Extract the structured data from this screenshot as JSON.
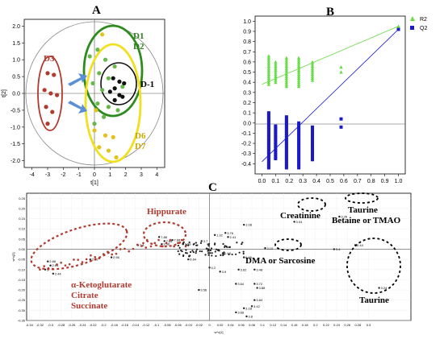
{
  "chart_data": [
    {
      "id": "A",
      "type": "scatter",
      "panel_label": "A",
      "xlabel": "t[1]",
      "ylabel": "t[2]",
      "xlim": [
        -4.5,
        4.5
      ],
      "ylim": [
        -2.2,
        2.2
      ],
      "x_ticks": [
        -4,
        -3,
        -2,
        -1,
        0,
        1,
        2,
        3,
        4
      ],
      "y_ticks": [
        -2.0,
        -1.5,
        -1.0,
        -0.5,
        0.0,
        0.5,
        1.0,
        1.5,
        2.0
      ],
      "groups": [
        {
          "name": "D3",
          "color": "#b03a2e",
          "points": [
            [
              -3.0,
              0.6
            ],
            [
              -2.6,
              0.55
            ],
            [
              -3.2,
              0.1
            ],
            [
              -2.8,
              0.0
            ],
            [
              -2.4,
              -0.05
            ],
            [
              -3.1,
              -0.4
            ],
            [
              -2.7,
              -0.55
            ],
            [
              -3.0,
              -0.9
            ]
          ]
        },
        {
          "name": "D1 D2",
          "color": "#66b84a",
          "points": [
            [
              0.2,
              1.3
            ],
            [
              -0.3,
              1.1
            ],
            [
              0.7,
              1.0
            ],
            [
              0.3,
              0.6
            ],
            [
              1.3,
              0.8
            ],
            [
              0.9,
              0.45
            ],
            [
              -0.1,
              0.3
            ],
            [
              0.5,
              0.1
            ],
            [
              1.8,
              0.2
            ],
            [
              0.2,
              -0.3
            ],
            [
              0.9,
              -0.4
            ],
            [
              1.5,
              -0.5
            ],
            [
              0.6,
              -0.7
            ],
            [
              0.0,
              -0.9
            ]
          ]
        },
        {
          "name": "D-1",
          "color": "#111111",
          "points": [
            [
              1.2,
              0.45
            ],
            [
              1.6,
              0.35
            ],
            [
              1.3,
              0.15
            ],
            [
              1.9,
              0.3
            ],
            [
              1.6,
              -0.05
            ],
            [
              1.3,
              -0.2
            ],
            [
              1.0,
              0.05
            ],
            [
              1.8,
              -0.1
            ]
          ]
        },
        {
          "name": "D6 D7",
          "color": "#e3c21a",
          "points": [
            [
              0.5,
              1.75
            ],
            [
              0.0,
              -1.1
            ],
            [
              0.7,
              -1.25
            ],
            [
              1.2,
              -1.3
            ],
            [
              0.3,
              -1.6
            ],
            [
              0.9,
              -1.7
            ],
            [
              1.4,
              -1.9
            ],
            [
              0.1,
              -0.5
            ]
          ]
        }
      ],
      "labels": [
        {
          "text": "D1",
          "color": "#2e7d1e"
        },
        {
          "text": "D2",
          "color": "#2e7d1e"
        },
        {
          "text": "D3",
          "color": "#b03a2e"
        },
        {
          "text": "D-1",
          "color": "#000000"
        },
        {
          "text": "D6",
          "color": "#c9a800"
        },
        {
          "text": "D7",
          "color": "#c9a800"
        }
      ]
    },
    {
      "id": "B",
      "type": "scatter",
      "panel_label": "B",
      "xlim": [
        -0.05,
        1.05
      ],
      "ylim": [
        -0.5,
        1.05
      ],
      "x_ticks": [
        0.0,
        0.1,
        0.2,
        0.3,
        0.4,
        0.5,
        0.6,
        0.7,
        0.8,
        0.9,
        1.0
      ],
      "y_ticks": [
        -0.4,
        -0.3,
        -0.2,
        -0.1,
        0.0,
        0.1,
        0.2,
        0.3,
        0.4,
        0.5,
        0.6,
        0.7,
        0.8,
        0.9,
        1.0
      ],
      "legend": [
        {
          "name": "R2",
          "color": "#66dd44",
          "marker": "triangle"
        },
        {
          "name": "Q2",
          "color": "#1a1acc",
          "marker": "square"
        }
      ],
      "legend_position": "top-right",
      "r2_columns": [
        {
          "x": 0.05,
          "y_min": 0.38,
          "y_max": 0.66
        },
        {
          "x": 0.1,
          "y_min": 0.4,
          "y_max": 0.6
        },
        {
          "x": 0.18,
          "y_min": 0.36,
          "y_max": 0.64
        },
        {
          "x": 0.27,
          "y_min": 0.36,
          "y_max": 0.64
        },
        {
          "x": 0.37,
          "y_min": 0.42,
          "y_max": 0.6
        }
      ],
      "r2_singles": [
        [
          0.58,
          0.55
        ],
        [
          0.58,
          0.5
        ],
        [
          1.0,
          0.95
        ]
      ],
      "q2_columns": [
        {
          "x": 0.05,
          "y_min": -0.44,
          "y_max": 0.1
        },
        {
          "x": 0.1,
          "y_min": -0.35,
          "y_max": -0.02
        },
        {
          "x": 0.18,
          "y_min": -0.44,
          "y_max": 0.06
        },
        {
          "x": 0.27,
          "y_min": -0.44,
          "y_max": 0.0
        },
        {
          "x": 0.37,
          "y_min": -0.36,
          "y_max": -0.04
        }
      ],
      "q2_singles": [
        [
          0.58,
          0.04
        ],
        [
          0.58,
          -0.04
        ],
        [
          1.0,
          0.92
        ]
      ],
      "r2_line": [
        [
          0.0,
          0.38
        ],
        [
          1.0,
          0.95
        ]
      ],
      "q2_line": [
        [
          0.0,
          -0.38
        ],
        [
          1.0,
          0.92
        ]
      ]
    },
    {
      "id": "C",
      "type": "scatter",
      "panel_label": "C",
      "xlabel": "w*c[1]",
      "ylabel": "w*c[2]",
      "xlim": [
        -0.345,
        0.38
      ],
      "ylim": [
        -0.35,
        0.275
      ],
      "x_ticks": [
        -0.34,
        -0.32,
        -0.3,
        -0.28,
        -0.26,
        -0.24,
        -0.22,
        -0.2,
        -0.18,
        -0.16,
        -0.14,
        -0.12,
        -0.1,
        -0.08,
        -0.06,
        -0.04,
        -0.02,
        0.0,
        0.02,
        0.04,
        0.06,
        0.08,
        0.1,
        0.12,
        0.14,
        0.16,
        0.18,
        0.2,
        0.22,
        0.24,
        0.26,
        0.28,
        0.3
      ],
      "y_ticks": [
        -0.35,
        -0.3,
        -0.25,
        -0.2,
        -0.15,
        -0.1,
        -0.05,
        0.0,
        0.05,
        0.1,
        0.15,
        0.2,
        0.25
      ],
      "points": [
        {
          "x": -0.305,
          "y": -0.06,
          "label": "2.68"
        },
        {
          "x": -0.3,
          "y": -0.08,
          "label": "2.64"
        },
        {
          "x": -0.31,
          "y": -0.1,
          "label": "3"
        },
        {
          "x": -0.295,
          "y": -0.12,
          "label": "2.44"
        },
        {
          "x": -0.225,
          "y": -0.05,
          "label": "2.52"
        },
        {
          "x": -0.185,
          "y": -0.04,
          "label": "2.56"
        },
        {
          "x": -0.135,
          "y": 0.02,
          "label": "7.8"
        },
        {
          "x": -0.095,
          "y": 0.06,
          "label": "7.88"
        },
        {
          "x": -0.085,
          "y": 0.04,
          "label": "7.84"
        },
        {
          "x": -0.07,
          "y": 0.045,
          "label": "7.68"
        },
        {
          "x": -0.09,
          "y": 0.025,
          "label": "3.96"
        },
        {
          "x": -0.05,
          "y": 0.025,
          "label": "3.98"
        },
        {
          "x": -0.015,
          "y": 0.04,
          "label": "3.7"
        },
        {
          "x": 0.01,
          "y": 0.07,
          "label": "1.32"
        },
        {
          "x": 0.03,
          "y": 0.08,
          "label": "3.76"
        },
        {
          "x": 0.035,
          "y": 0.06,
          "label": "2.41"
        },
        {
          "x": 0.065,
          "y": 0.12,
          "label": "1.08"
        },
        {
          "x": 0.025,
          "y": -0.02,
          "label": "1.48"
        },
        {
          "x": -0.04,
          "y": -0.05,
          "label": "6.64"
        },
        {
          "x": 0.0,
          "y": -0.09,
          "label": "4.2"
        },
        {
          "x": 0.02,
          "y": -0.11,
          "label": "3.9"
        },
        {
          "x": 0.055,
          "y": -0.1,
          "label": "3.62"
        },
        {
          "x": 0.065,
          "y": -0.04,
          "label": "6.56"
        },
        {
          "x": 0.085,
          "y": -0.1,
          "label": "3.48"
        },
        {
          "x": 0.05,
          "y": -0.17,
          "label": "3.64"
        },
        {
          "x": 0.085,
          "y": -0.17,
          "label": "3.72"
        },
        {
          "x": 0.09,
          "y": -0.19,
          "label": "3.88"
        },
        {
          "x": 0.085,
          "y": -0.25,
          "label": "3.84"
        },
        {
          "x": 0.08,
          "y": -0.28,
          "label": "3.42"
        },
        {
          "x": 0.065,
          "y": -0.29,
          "label": "3.18"
        },
        {
          "x": 0.05,
          "y": -0.31,
          "label": "3.66"
        },
        {
          "x": 0.07,
          "y": -0.33,
          "label": "3.8"
        },
        {
          "x": -0.02,
          "y": -0.2,
          "label": "3.56"
        },
        {
          "x": 0.105,
          "y": 0.005,
          "label": "3.10"
        },
        {
          "x": 0.16,
          "y": 0.135,
          "label": "3.04"
        },
        {
          "x": 0.245,
          "y": 0.16,
          "label": "3.26"
        },
        {
          "x": 0.235,
          "y": 0.0,
          "label": "3.4"
        },
        {
          "x": 0.275,
          "y": 0.02,
          "label": "2.44"
        },
        {
          "x": 0.32,
          "y": -0.19,
          "label": "3.24"
        }
      ],
      "cluster_dot_count": 80,
      "annotations": [
        {
          "text": "Hippurate",
          "color": "#b03a2e"
        },
        {
          "text": "α-Ketoglutarate",
          "color": "#b03a2e"
        },
        {
          "text": "Citrate",
          "color": "#b03a2e"
        },
        {
          "text": "Succinate",
          "color": "#b03a2e"
        },
        {
          "text": "Creatinine",
          "color": "#000000"
        },
        {
          "text": "Taurine",
          "color": "#000000"
        },
        {
          "text": "Betaine or TMAO",
          "color": "#000000"
        },
        {
          "text": "DMA or Sarcosine",
          "color": "#000000"
        },
        {
          "text": "Taurine",
          "color": "#000000"
        }
      ]
    }
  ]
}
